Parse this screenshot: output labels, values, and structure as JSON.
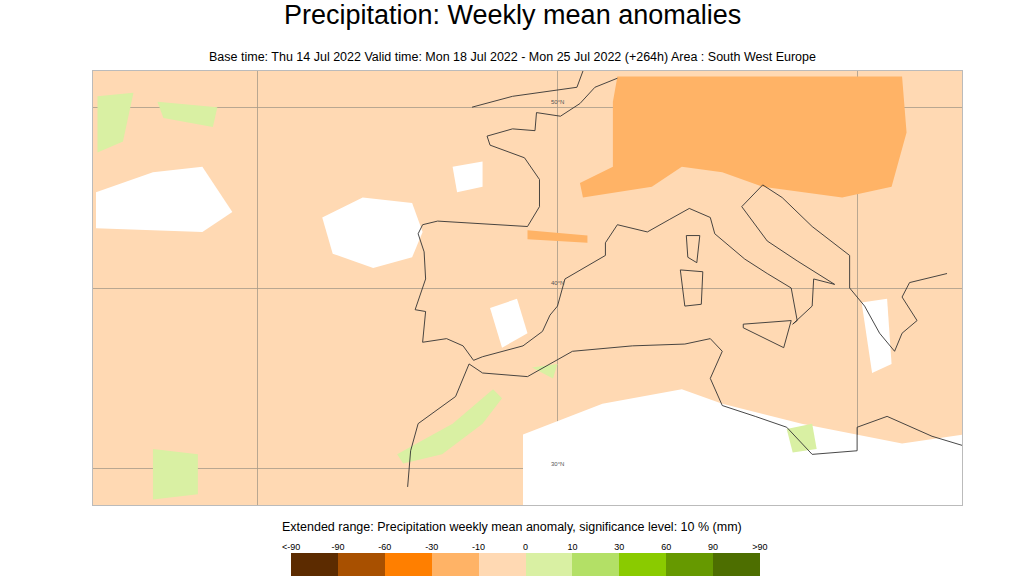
{
  "chart_data": {
    "type": "map",
    "title": "Precipitation: Weekly mean anomalies",
    "subtitle": "Base time: Thu 14 Jul 2022 Valid time: Mon 18 Jul 2022 - Mon 25 Jul 2022 (+264h) Area : South West Europe",
    "caption": "Extended range: Precipitation weekly mean anomaly, significance level: 10 % (mm)",
    "xlim": [
      -31,
      27
    ],
    "ylim": [
      28,
      52
    ],
    "xticks": [
      -20,
      0,
      20
    ],
    "yticks": [
      {
        "value": 30,
        "label": "30°N"
      },
      {
        "value": 40,
        "label": "40°N"
      },
      {
        "value": 50,
        "label": "50°N"
      }
    ],
    "grid": true,
    "tick_labels": false,
    "color": "#ffd9b3",
    "colorbar": {
      "ticks": [
        "<-90",
        -90,
        -60,
        -30,
        -10,
        0,
        10,
        30,
        60,
        90,
        ">90"
      ],
      "colors": [
        "#5c2b00",
        "#a85000",
        "#ff7f00",
        "#ffb366",
        "#ffd9b3",
        "#d9f0a3",
        "#b3e066",
        "#8acb00",
        "#669900",
        "#4d6e00"
      ]
    },
    "regions": [
      {
        "color": "#ffb366",
        "points": [
          [
            4.0,
            51.7
          ],
          [
            23.0,
            51.7
          ],
          [
            23.3,
            48.6
          ],
          [
            22.3,
            45.6
          ],
          [
            19.0,
            45.0
          ],
          [
            13.7,
            45.6
          ],
          [
            11.0,
            46.4
          ],
          [
            8.3,
            46.7
          ],
          [
            6.3,
            45.6
          ],
          [
            1.7,
            45.0
          ],
          [
            1.5,
            45.8
          ],
          [
            3.7,
            46.7
          ],
          [
            3.7,
            50.3
          ]
        ]
      },
      {
        "color": "#ffb366",
        "points": [
          [
            -2,
            43.2
          ],
          [
            2,
            42.9
          ],
          [
            2,
            42.5
          ],
          [
            -2,
            42.7
          ]
        ]
      },
      {
        "color": "#ffffff",
        "points": [
          [
            -15.7,
            43.9
          ],
          [
            -13.0,
            45.0
          ],
          [
            -9.7,
            44.7
          ],
          [
            -9.0,
            43.1
          ],
          [
            -9.7,
            41.7
          ],
          [
            -12.3,
            41.1
          ],
          [
            -15.0,
            41.9
          ]
        ]
      },
      {
        "color": "#ffffff",
        "points": [
          [
            -30.8,
            45.3
          ],
          [
            -27,
            46.4
          ],
          [
            -23.7,
            46.7
          ],
          [
            -21.7,
            44.2
          ],
          [
            -23.7,
            43.1
          ],
          [
            -30.8,
            43.3
          ]
        ]
      },
      {
        "color": "#ffffff",
        "points": [
          [
            -2.3,
            31.9
          ],
          [
            3.0,
            33.6
          ],
          [
            8.3,
            34.4
          ],
          [
            11.0,
            33.6
          ],
          [
            16.3,
            32.5
          ],
          [
            23.0,
            31.4
          ],
          [
            27.1,
            31.9
          ],
          [
            27.1,
            27.8
          ],
          [
            -2.3,
            27.8
          ]
        ]
      },
      {
        "color": "#ffffff",
        "points": [
          [
            -4.5,
            38.9
          ],
          [
            -2.7,
            39.4
          ],
          [
            -2.0,
            37.5
          ],
          [
            -3.7,
            36.7
          ]
        ]
      },
      {
        "color": "#ffffff",
        "points": [
          [
            20.3,
            39.2
          ],
          [
            22.0,
            39.4
          ],
          [
            22.3,
            35.8
          ],
          [
            21.0,
            35.3
          ]
        ]
      },
      {
        "color": "#ffffff",
        "points": [
          [
            -7,
            46.7
          ],
          [
            -5,
            47
          ],
          [
            -5,
            45.6
          ],
          [
            -6.7,
            45.3
          ]
        ]
      },
      {
        "color": "#d9f0a3",
        "points": [
          [
            -10.7,
            30.8
          ],
          [
            -7,
            32.5
          ],
          [
            -4.3,
            34.4
          ],
          [
            -3.7,
            33.9
          ],
          [
            -5,
            32.5
          ],
          [
            -7.7,
            30.8
          ],
          [
            -10.3,
            30.3
          ]
        ]
      },
      {
        "color": "#d9f0a3",
        "points": [
          [
            -30.7,
            50.6
          ],
          [
            -28.3,
            50.8
          ],
          [
            -29,
            48.1
          ],
          [
            -30.7,
            47.5
          ]
        ]
      },
      {
        "color": "#d9f0a3",
        "points": [
          [
            -26.7,
            50.3
          ],
          [
            -22.7,
            50
          ],
          [
            -23,
            48.9
          ],
          [
            -26.3,
            49.4
          ]
        ]
      },
      {
        "color": "#d9f0a3",
        "points": [
          [
            -27,
            31.1
          ],
          [
            -24,
            30.8
          ],
          [
            -24,
            28.6
          ],
          [
            -27,
            28.3
          ]
        ]
      },
      {
        "color": "#d9f0a3",
        "points": [
          [
            15.3,
            32.2
          ],
          [
            17,
            32.5
          ],
          [
            17.3,
            31.1
          ],
          [
            15.7,
            30.9
          ]
        ]
      },
      {
        "color": "#d9f0a3",
        "points": [
          [
            -1.7,
            35.6
          ],
          [
            0,
            35.8
          ],
          [
            -0.3,
            35
          ]
        ]
      }
    ],
    "coastlines": [
      {
        "points": [
          [
            -9,
            43.5
          ],
          [
            -8,
            43.7
          ],
          [
            -2,
            43.4
          ],
          [
            -1.2,
            44.5
          ],
          [
            -1.2,
            46
          ],
          [
            -2.2,
            47.2
          ],
          [
            -4.5,
            47.9
          ],
          [
            -4.7,
            48.4
          ],
          [
            -3,
            48.8
          ],
          [
            -1.5,
            48.7
          ],
          [
            -1.4,
            49.7
          ],
          [
            0.2,
            49.5
          ],
          [
            1.5,
            50.2
          ],
          [
            2.5,
            51.1
          ],
          [
            4,
            51.6
          ]
        ]
      },
      {
        "points": [
          [
            -9,
            43.5
          ],
          [
            -9.3,
            43
          ],
          [
            -8.9,
            42
          ],
          [
            -8.8,
            40.5
          ],
          [
            -9.5,
            38.8
          ],
          [
            -8.8,
            38.7
          ],
          [
            -9,
            37
          ],
          [
            -7.4,
            37.2
          ],
          [
            -6.3,
            36.8
          ],
          [
            -5.6,
            36
          ],
          [
            -5,
            36.2
          ],
          [
            -2.3,
            36.8
          ],
          [
            -1,
            37.6
          ],
          [
            -0.5,
            38.5
          ],
          [
            0,
            39
          ],
          [
            0.5,
            40.5
          ],
          [
            3.2,
            41.8
          ],
          [
            3.2,
            42.5
          ],
          [
            4,
            43.5
          ],
          [
            6,
            43.1
          ],
          [
            7.5,
            43.8
          ],
          [
            8.8,
            44.4
          ],
          [
            10.2,
            43.9
          ],
          [
            10.5,
            43
          ],
          [
            12.5,
            41.6
          ],
          [
            14,
            40.8
          ],
          [
            15.6,
            40
          ],
          [
            16,
            38.2
          ],
          [
            15.7,
            38
          ],
          [
            17,
            39
          ],
          [
            17.1,
            40.5
          ],
          [
            18.5,
            40.2
          ],
          [
            16,
            41.5
          ],
          [
            14,
            42.6
          ],
          [
            12.3,
            44.5
          ],
          [
            13.7,
            45.7
          ],
          [
            15,
            45
          ],
          [
            17,
            43.4
          ],
          [
            19.5,
            41.8
          ],
          [
            19.5,
            40
          ],
          [
            20.5,
            39
          ],
          [
            21.5,
            37.5
          ],
          [
            22.5,
            36.5
          ],
          [
            23,
            37.5
          ],
          [
            24,
            38.2
          ],
          [
            23,
            39.5
          ],
          [
            23.5,
            40.3
          ],
          [
            26,
            40.8
          ]
        ]
      },
      {
        "points": [
          [
            -10,
            29
          ],
          [
            -9.8,
            31
          ],
          [
            -9.3,
            32.5
          ],
          [
            -6.8,
            34
          ],
          [
            -5.9,
            35.8
          ],
          [
            -5,
            35.3
          ],
          [
            -2,
            35.1
          ],
          [
            1,
            36.5
          ],
          [
            5,
            36.8
          ],
          [
            8.5,
            36.9
          ],
          [
            10.2,
            37.2
          ],
          [
            11,
            36.5
          ],
          [
            10.2,
            35
          ],
          [
            11,
            33.5
          ],
          [
            13.2,
            32.9
          ],
          [
            15.3,
            32.3
          ],
          [
            17,
            30.8
          ],
          [
            20,
            31
          ],
          [
            20,
            32.3
          ],
          [
            22,
            32.9
          ],
          [
            25,
            31.8
          ],
          [
            27,
            31.3
          ]
        ]
      },
      {
        "points": [
          [
            -5.7,
            50
          ],
          [
            -3,
            50.6
          ],
          [
            1.3,
            51.1
          ],
          [
            1.7,
            52
          ]
        ]
      },
      {
        "points": [
          [
            12.4,
            38
          ],
          [
            15.6,
            38.2
          ],
          [
            15.1,
            36.7
          ],
          [
            12.4,
            37.8
          ],
          [
            12.4,
            38
          ]
        ]
      },
      {
        "points": [
          [
            8.2,
            41
          ],
          [
            9.7,
            40.9
          ],
          [
            9.6,
            39.1
          ],
          [
            8.5,
            39
          ],
          [
            8.2,
            41
          ]
        ]
      },
      {
        "points": [
          [
            8.6,
            42.9
          ],
          [
            9.5,
            42.9
          ],
          [
            9.3,
            41.4
          ],
          [
            8.7,
            41.7
          ],
          [
            8.6,
            42.9
          ]
        ]
      }
    ]
  }
}
